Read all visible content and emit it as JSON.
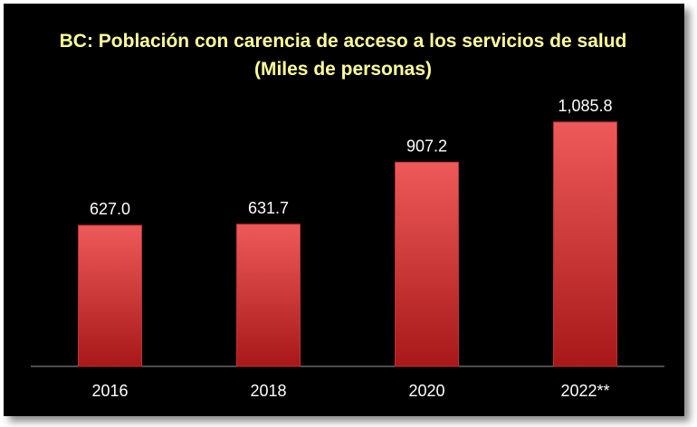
{
  "chart_data": {
    "type": "bar",
    "title": "BC: Población con carencia de acceso a los servicios de salud (Miles de personas)",
    "categories": [
      "2016",
      "2018",
      "2020",
      "2022**"
    ],
    "values": [
      627.0,
      631.7,
      907.2,
      1085.8
    ],
    "value_labels": [
      "627.0",
      "631.7",
      "907.2",
      "1,085.8"
    ],
    "xlabel": "",
    "ylabel": "",
    "ylim": [
      0,
      1250
    ],
    "grid": false,
    "legend": "none",
    "colors": {
      "background": "#000000",
      "bar_top": "#ee5a5a",
      "bar_bottom": "#a81818",
      "title": "#ffff99",
      "text": "#ffffff"
    }
  }
}
